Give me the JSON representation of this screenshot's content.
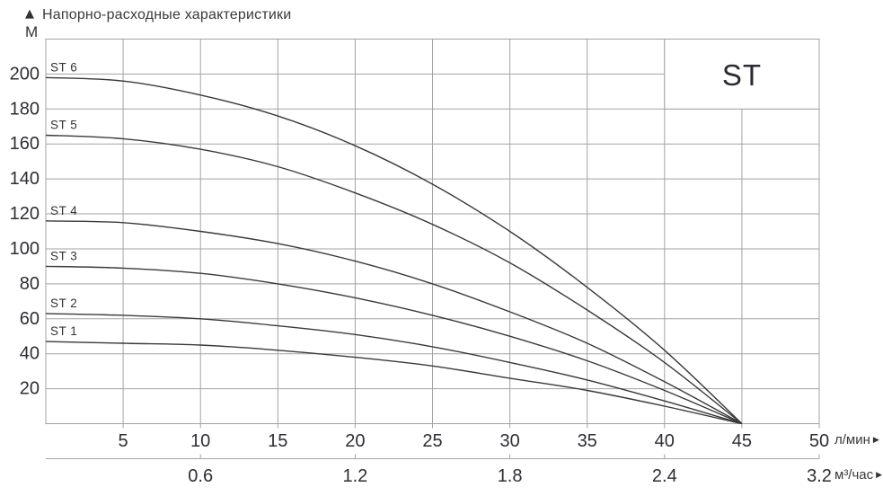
{
  "title": "Напорно-расходные характеристики",
  "legend": {
    "label": "ST"
  },
  "y_axis": {
    "unit": "М",
    "arrow": "▲",
    "ticks": [
      20,
      40,
      60,
      80,
      100,
      120,
      140,
      160,
      180,
      200
    ],
    "max": 220
  },
  "x_axis": {
    "unit": "л/мин",
    "arrow": "▶",
    "ticks": [
      5,
      10,
      15,
      20,
      25,
      30,
      35,
      40,
      45,
      50
    ],
    "max": 50
  },
  "x_axis_secondary": {
    "unit": "м³/час",
    "arrow": "▶",
    "ticks": [
      {
        "label": "0.6",
        "x": 10
      },
      {
        "label": "1.2",
        "x": 20
      },
      {
        "label": "1.8",
        "x": 30
      },
      {
        "label": "2.4",
        "x": 40
      },
      {
        "label": "3.2",
        "x": 50
      }
    ]
  },
  "chart_data": {
    "type": "line",
    "title": "Напорно-расходные характеристики",
    "xlabel": "л/мин",
    "x2label": "м³/час",
    "ylabel": "М",
    "xlim": [
      0,
      50
    ],
    "ylim": [
      0,
      220
    ],
    "grid": true,
    "legend_position": "top-right",
    "x": [
      0,
      5,
      10,
      15,
      20,
      25,
      30,
      35,
      40,
      45
    ],
    "series": [
      {
        "name": "ST 1",
        "values": [
          47,
          46,
          45,
          42,
          38,
          33,
          26,
          19,
          10,
          0
        ]
      },
      {
        "name": "ST 2",
        "values": [
          63,
          62,
          60,
          56,
          51,
          44,
          35,
          25,
          13,
          0
        ]
      },
      {
        "name": "ST 3",
        "values": [
          90,
          89,
          86,
          80,
          72,
          62,
          50,
          36,
          19,
          0
        ]
      },
      {
        "name": "ST 4",
        "values": [
          116,
          115,
          110,
          103,
          93,
          80,
          64,
          46,
          24,
          0
        ]
      },
      {
        "name": "ST 5",
        "values": [
          165,
          163,
          157,
          147,
          132,
          114,
          92,
          65,
          35,
          0
        ]
      },
      {
        "name": "ST 6",
        "values": [
          198,
          196,
          188,
          176,
          159,
          137,
          110,
          78,
          42,
          0
        ]
      }
    ],
    "colors": {
      "curve": "#3a3a3a",
      "grid": "#a3a3a3",
      "text": "#2e2e33",
      "background": "#ffffff"
    }
  }
}
